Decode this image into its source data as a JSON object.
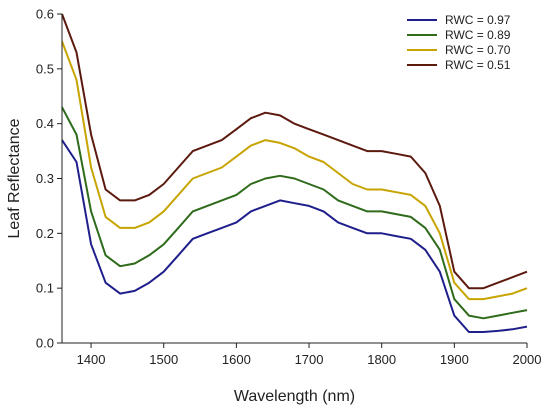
{
  "chart_data": {
    "type": "line",
    "title": "",
    "xlabel": "Wavelength (nm)",
    "ylabel": "Leaf Reflectance",
    "xlim": [
      1360,
      2000
    ],
    "ylim": [
      0,
      0.6
    ],
    "xticks": [
      1400,
      1500,
      1600,
      1700,
      1800,
      1900,
      2000
    ],
    "yticks": [
      0.0,
      0.1,
      0.2,
      0.3,
      0.4,
      0.5,
      0.6
    ],
    "xtick_labels": [
      "1400",
      "1500",
      "1600",
      "1700",
      "1800",
      "1900",
      "2000"
    ],
    "ytick_labels": [
      "0.0",
      "0.1",
      "0.2",
      "0.3",
      "0.4",
      "0.5",
      "0.6"
    ],
    "grid": false,
    "legend": "top-right",
    "x": [
      1360,
      1380,
      1400,
      1420,
      1440,
      1460,
      1480,
      1500,
      1520,
      1540,
      1560,
      1580,
      1600,
      1620,
      1640,
      1660,
      1680,
      1700,
      1720,
      1740,
      1760,
      1780,
      1800,
      1820,
      1840,
      1860,
      1880,
      1900,
      1920,
      1940,
      1960,
      1980,
      2000
    ],
    "series": [
      {
        "name": "RWC = 0.97",
        "color": "#1f1f8c",
        "values": [
          0.37,
          0.33,
          0.18,
          0.11,
          0.09,
          0.095,
          0.11,
          0.13,
          0.16,
          0.19,
          0.2,
          0.21,
          0.22,
          0.24,
          0.25,
          0.26,
          0.255,
          0.25,
          0.24,
          0.22,
          0.21,
          0.2,
          0.2,
          0.195,
          0.19,
          0.17,
          0.13,
          0.05,
          0.02,
          0.02,
          0.022,
          0.025,
          0.03
        ]
      },
      {
        "name": "RWC = 0.89",
        "color": "#2e6b1a",
        "values": [
          0.43,
          0.38,
          0.24,
          0.16,
          0.14,
          0.145,
          0.16,
          0.18,
          0.21,
          0.24,
          0.25,
          0.26,
          0.27,
          0.29,
          0.3,
          0.305,
          0.3,
          0.29,
          0.28,
          0.26,
          0.25,
          0.24,
          0.24,
          0.235,
          0.23,
          0.21,
          0.17,
          0.08,
          0.05,
          0.045,
          0.05,
          0.055,
          0.06
        ]
      },
      {
        "name": "RWC = 0.70",
        "color": "#c8a400",
        "values": [
          0.55,
          0.48,
          0.32,
          0.23,
          0.21,
          0.21,
          0.22,
          0.24,
          0.27,
          0.3,
          0.31,
          0.32,
          0.34,
          0.36,
          0.37,
          0.365,
          0.355,
          0.34,
          0.33,
          0.31,
          0.29,
          0.28,
          0.28,
          0.275,
          0.27,
          0.25,
          0.2,
          0.11,
          0.08,
          0.08,
          0.085,
          0.09,
          0.1
        ]
      },
      {
        "name": "RWC = 0.51",
        "color": "#5c1a0f",
        "values": [
          0.6,
          0.53,
          0.38,
          0.28,
          0.26,
          0.26,
          0.27,
          0.29,
          0.32,
          0.35,
          0.36,
          0.37,
          0.39,
          0.41,
          0.42,
          0.415,
          0.4,
          0.39,
          0.38,
          0.37,
          0.36,
          0.35,
          0.35,
          0.345,
          0.34,
          0.31,
          0.25,
          0.13,
          0.1,
          0.1,
          0.11,
          0.12,
          0.13
        ]
      }
    ]
  }
}
